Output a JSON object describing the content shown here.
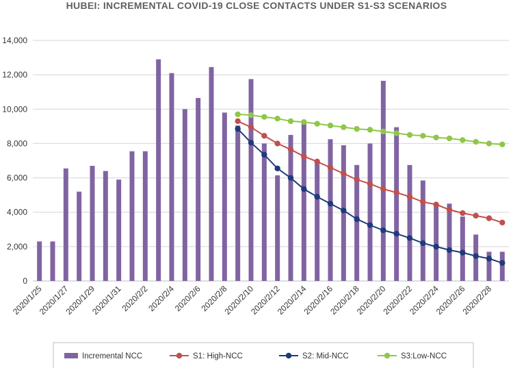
{
  "chart_data": {
    "type": "bar",
    "title": "HUBEI: INCREMENTAL COVID-19 CLOSE CONTACTS UNDER S1-S3 SCENARIOS",
    "xlabel": "",
    "ylabel": "",
    "ylim": [
      0,
      14000
    ],
    "yticks": [
      0,
      2000,
      4000,
      6000,
      8000,
      10000,
      12000,
      14000
    ],
    "ytick_labels": [
      "0",
      "2,000",
      "4,000",
      "6,000",
      "8,000",
      "10,000",
      "12,000",
      "14,000"
    ],
    "grid": true,
    "legend_position": "bottom",
    "categories": [
      "2020/1/25",
      "2020/1/26",
      "2020/1/27",
      "2020/1/28",
      "2020/1/29",
      "2020/1/30",
      "2020/1/31",
      "2020/2/1",
      "2020/2/2",
      "2020/2/3",
      "2020/2/4",
      "2020/2/5",
      "2020/2/6",
      "2020/2/7",
      "2020/2/8",
      "2020/2/9",
      "2020/2/10",
      "2020/2/11",
      "2020/2/12",
      "2020/2/13",
      "2020/2/14",
      "2020/2/15",
      "2020/2/16",
      "2020/2/17",
      "2020/2/18",
      "2020/2/19",
      "2020/2/20",
      "2020/2/21",
      "2020/2/22",
      "2020/2/23",
      "2020/2/24",
      "2020/2/25",
      "2020/2/26",
      "2020/2/27",
      "2020/2/28",
      "2020/2/29"
    ],
    "xtick_labels": [
      "2020/1/25",
      "2020/1/27",
      "2020/1/29",
      "2020/1/31",
      "2020/2/2",
      "2020/2/4",
      "2020/2/6",
      "2020/2/8",
      "2020/2/10",
      "2020/2/12",
      "2020/2/14",
      "2020/2/16",
      "2020/2/18",
      "2020/2/20",
      "2020/2/22",
      "2020/2/24",
      "2020/2/26",
      "2020/2/28"
    ],
    "series": [
      {
        "name": "Incremental NCC",
        "kind": "bar",
        "color": "#8064a2",
        "values": [
          2300,
          2300,
          6550,
          5200,
          6700,
          6400,
          5900,
          7550,
          7550,
          12900,
          12100,
          10000,
          10650,
          12450,
          9800,
          9050,
          11750,
          8000,
          6150,
          8500,
          9250,
          7050,
          8250,
          7900,
          6750,
          8000,
          11650,
          8950,
          6750,
          5850,
          4450,
          4500,
          3750,
          2700,
          1700,
          1700
        ]
      },
      {
        "name": "S1: High-NCC",
        "kind": "line",
        "color": "#c0504d",
        "values": [
          null,
          null,
          null,
          null,
          null,
          null,
          null,
          null,
          null,
          null,
          null,
          null,
          null,
          null,
          null,
          9300,
          8950,
          8450,
          8000,
          7650,
          7250,
          6950,
          6600,
          6250,
          5900,
          5650,
          5350,
          5150,
          4900,
          4600,
          4450,
          4150,
          3950,
          3800,
          3650,
          3400
        ]
      },
      {
        "name": "S2: Mid-NCC",
        "kind": "line",
        "color": "#1f3a7a",
        "values": [
          null,
          null,
          null,
          null,
          null,
          null,
          null,
          null,
          null,
          null,
          null,
          null,
          null,
          null,
          null,
          8850,
          8050,
          7350,
          6550,
          6000,
          5350,
          4900,
          4500,
          4100,
          3600,
          3250,
          2950,
          2750,
          2500,
          2200,
          2000,
          1800,
          1650,
          1450,
          1300,
          1050
        ]
      },
      {
        "name": "S3:Low-NCC",
        "kind": "line",
        "color": "#8fc74a",
        "values": [
          null,
          null,
          null,
          null,
          null,
          null,
          null,
          null,
          null,
          null,
          null,
          null,
          null,
          null,
          null,
          9700,
          9650,
          9550,
          9450,
          9300,
          9250,
          9150,
          9050,
          8950,
          8850,
          8800,
          8700,
          8600,
          8500,
          8450,
          8350,
          8300,
          8200,
          8100,
          8000,
          7950
        ]
      }
    ]
  }
}
